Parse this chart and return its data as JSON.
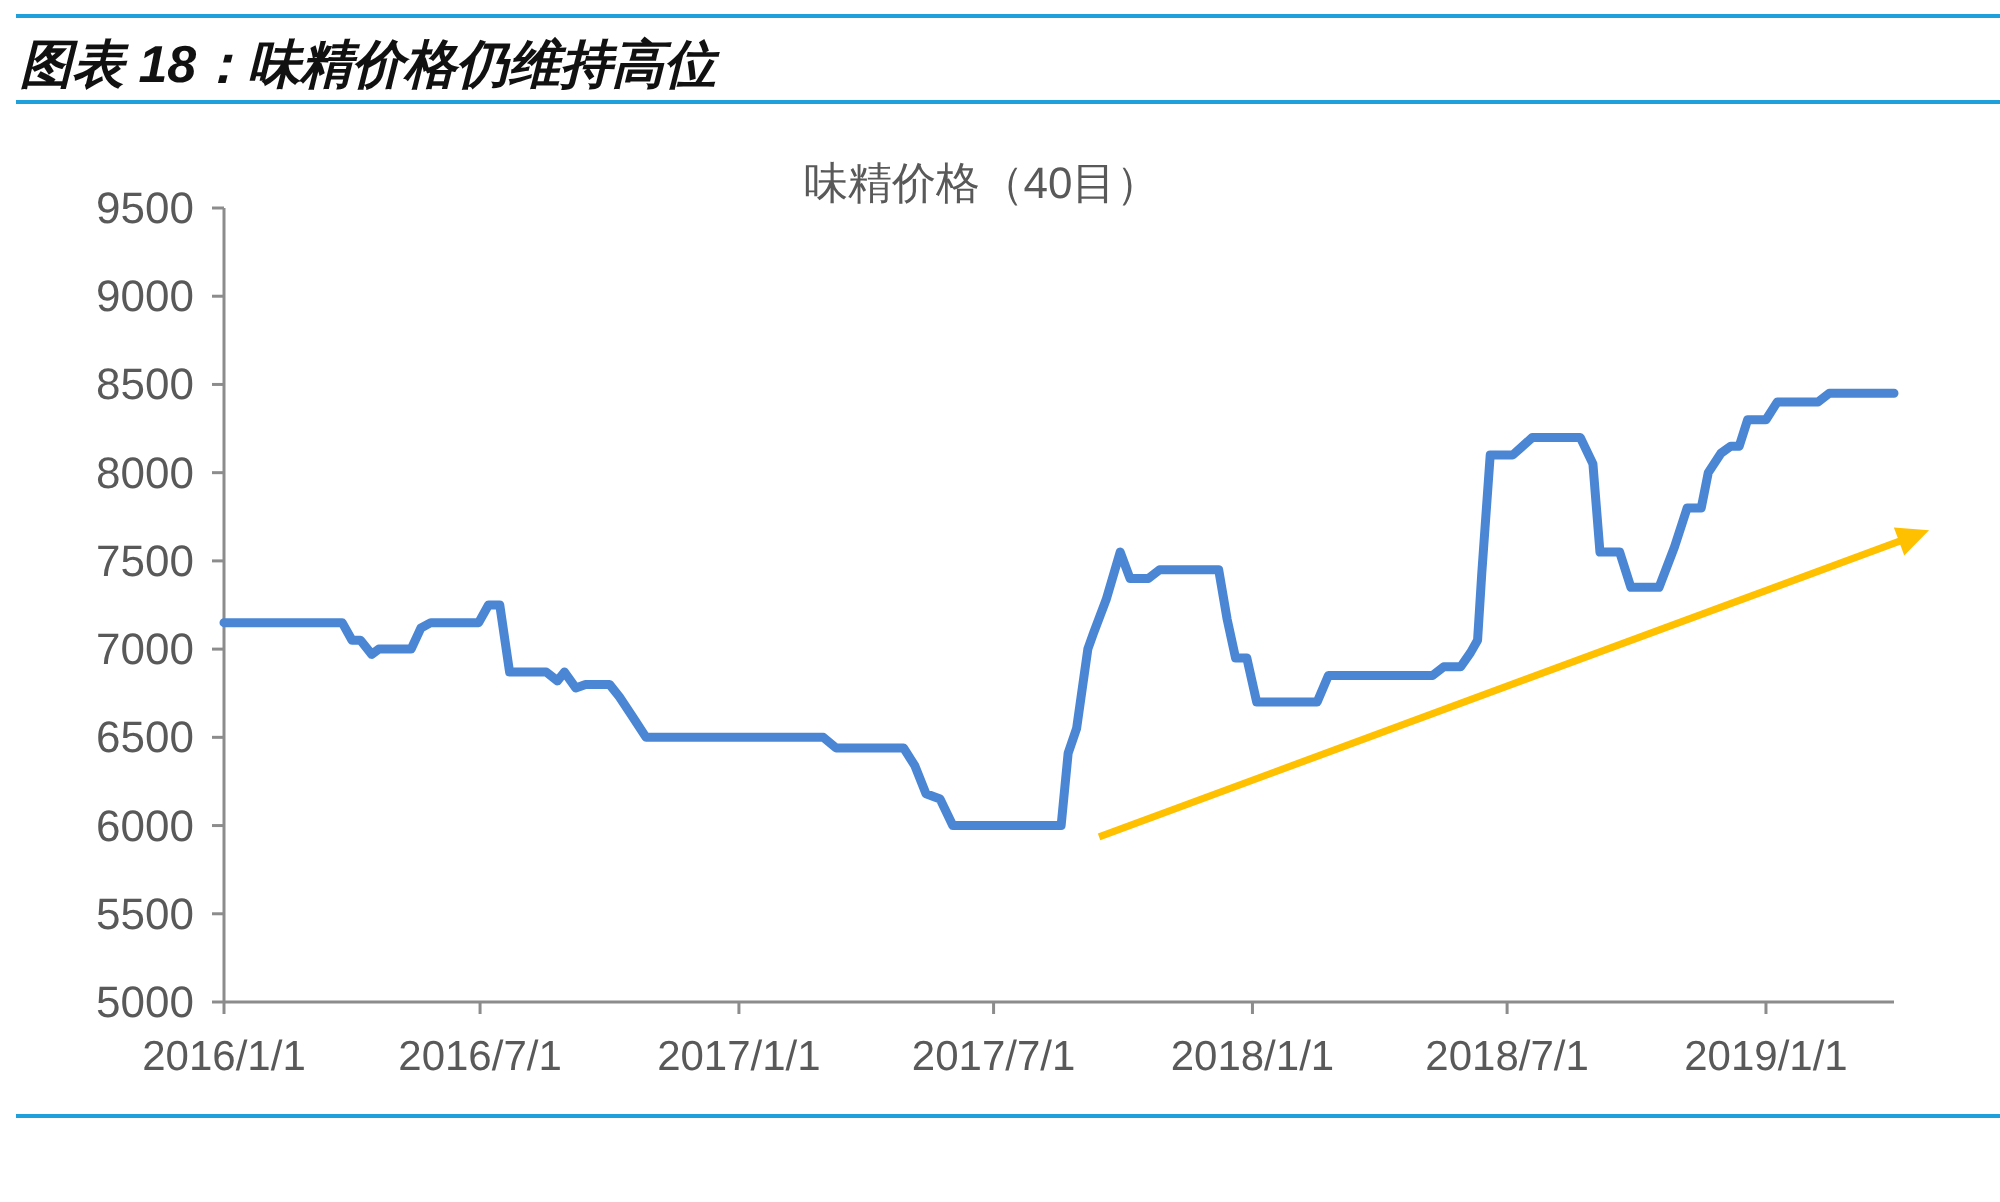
{
  "chart_data": {
    "type": "line",
    "title": "图表 18：味精价格仍维持高位",
    "subtitle": "味精价格（40目）",
    "x": [
      "2016-01-01",
      "2016-03-25",
      "2016-04-01",
      "2016-04-07",
      "2016-04-15",
      "2016-04-20",
      "2016-05-13",
      "2016-05-20",
      "2016-05-27",
      "2016-06-30",
      "2016-07-07",
      "2016-07-15",
      "2016-07-22",
      "2016-08-17",
      "2016-08-25",
      "2016-08-30",
      "2016-09-07",
      "2016-09-14",
      "2016-10-01",
      "2016-10-08",
      "2016-10-18",
      "2016-10-27",
      "2017-03-02",
      "2017-03-11",
      "2017-04-28",
      "2017-05-06",
      "2017-05-14",
      "2017-05-24",
      "2017-06-02",
      "2017-08-18",
      "2017-08-23",
      "2017-08-29",
      "2017-09-06",
      "2017-09-10",
      "2017-09-19",
      "2017-09-29",
      "2017-10-06",
      "2017-10-19",
      "2017-10-27",
      "2017-12-08",
      "2017-12-14",
      "2017-12-20",
      "2017-12-28",
      "2018-01-04",
      "2018-02-16",
      "2018-02-24",
      "2018-05-09",
      "2018-05-17",
      "2018-05-29",
      "2018-06-05",
      "2018-06-10",
      "2018-06-13",
      "2018-06-19",
      "2018-07-05",
      "2018-07-19",
      "2018-08-22",
      "2018-08-31",
      "2018-09-05",
      "2018-09-19",
      "2018-09-27",
      "2018-10-17",
      "2018-10-28",
      "2018-11-06",
      "2018-11-16",
      "2018-11-21",
      "2018-11-30",
      "2018-12-07",
      "2018-12-13",
      "2018-12-19",
      "2019-01-01",
      "2019-01-09",
      "2019-02-07",
      "2019-02-15",
      "2019-04-02"
    ],
    "series": [
      {
        "color": "#4a86d4",
        "values": [
          7150,
          7150,
          7050,
          7050,
          6970,
          7000,
          7000,
          7120,
          7150,
          7150,
          7250,
          7250,
          6870,
          6870,
          6820,
          6870,
          6780,
          6800,
          6800,
          6730,
          6610,
          6500,
          6500,
          6440,
          6440,
          6340,
          6180,
          6150,
          6000,
          6000,
          6410,
          6550,
          7000,
          7090,
          7280,
          7550,
          7400,
          7400,
          7450,
          7450,
          7170,
          6950,
          6950,
          6700,
          6700,
          6850,
          6850,
          6900,
          6900,
          6980,
          7050,
          7430,
          8100,
          8100,
          8200,
          8200,
          8050,
          7550,
          7550,
          7350,
          7350,
          7580,
          7800,
          7800,
          8000,
          8110,
          8150,
          8150,
          8300,
          8300,
          8400,
          8400,
          8450,
          8450
        ]
      }
    ],
    "xlim": [
      "2016-01-01",
      "2019-04-02"
    ],
    "xticks": [
      {
        "value": "2016-01-01",
        "label": "2016/1/1"
      },
      {
        "value": "2016-07-01",
        "label": "2016/7/1"
      },
      {
        "value": "2017-01-01",
        "label": "2017/1/1"
      },
      {
        "value": "2017-07-01",
        "label": "2017/7/1"
      },
      {
        "value": "2018-01-01",
        "label": "2018/1/1"
      },
      {
        "value": "2018-07-01",
        "label": "2018/7/1"
      },
      {
        "value": "2019-01-01",
        "label": "2019/1/1"
      }
    ],
    "ylim": [
      5000,
      9500
    ],
    "yticks": [
      5000,
      5500,
      6000,
      6500,
      7000,
      7500,
      8000,
      8500,
      9000,
      9500
    ]
  }
}
